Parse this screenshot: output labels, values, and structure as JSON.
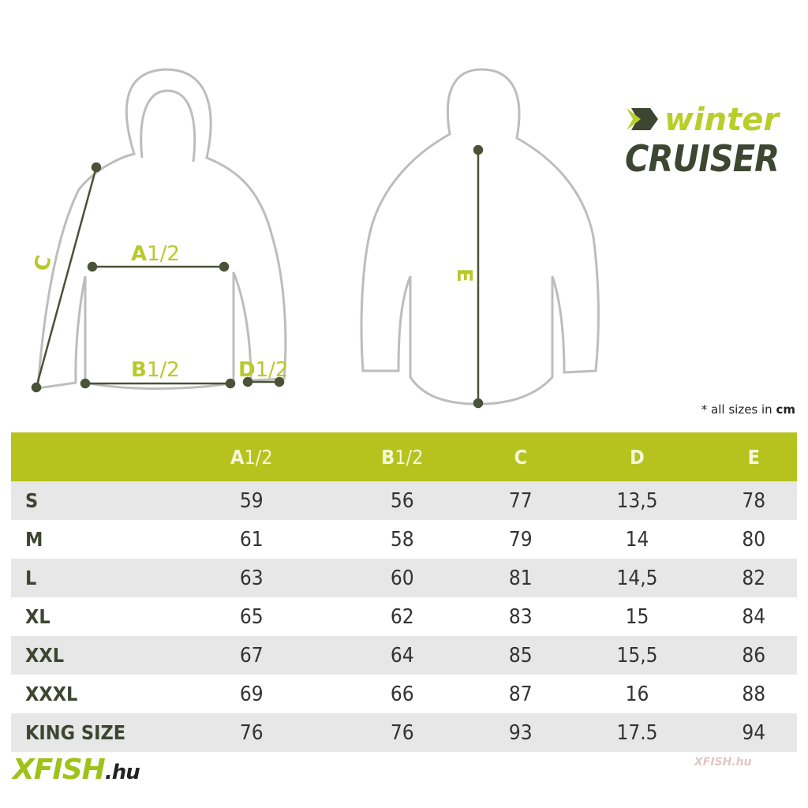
{
  "brand": {
    "line1": "winter",
    "line2": "CRUISER"
  },
  "diagram": {
    "front_labels": {
      "a": "A",
      "a_half": "1/2",
      "b": "B",
      "b_half": "1/2",
      "c": "C",
      "d": "D",
      "d_half": "1/2"
    },
    "back_labels": {
      "e": "E"
    }
  },
  "note": {
    "prefix": "* all sizes in ",
    "unit": "cm"
  },
  "table": {
    "headers": [
      {
        "letter": "",
        "half": ""
      },
      {
        "letter": "A",
        "half": "1/2"
      },
      {
        "letter": "B",
        "half": "1/2"
      },
      {
        "letter": "C",
        "half": ""
      },
      {
        "letter": "D",
        "half": ""
      },
      {
        "letter": "E",
        "half": ""
      }
    ],
    "rows": [
      [
        "S",
        "59",
        "56",
        "77",
        "13,5",
        "78"
      ],
      [
        "M",
        "61",
        "58",
        "79",
        "14",
        "80"
      ],
      [
        "L",
        "63",
        "60",
        "81",
        "14,5",
        "82"
      ],
      [
        "XL",
        "65",
        "62",
        "83",
        "15",
        "84"
      ],
      [
        "XXL",
        "67",
        "64",
        "85",
        "15,5",
        "86"
      ],
      [
        "XXXL",
        "69",
        "66",
        "87",
        "16",
        "88"
      ],
      [
        "KING SIZE",
        "76",
        "76",
        "93",
        "17.5",
        "94"
      ]
    ]
  },
  "footer": {
    "logo_main": "XFISH",
    "logo_suffix": ".hu",
    "watermark": "XFISH.hu"
  },
  "colors": {
    "accent": "#b6c31f",
    "dark": "#3d4631"
  }
}
